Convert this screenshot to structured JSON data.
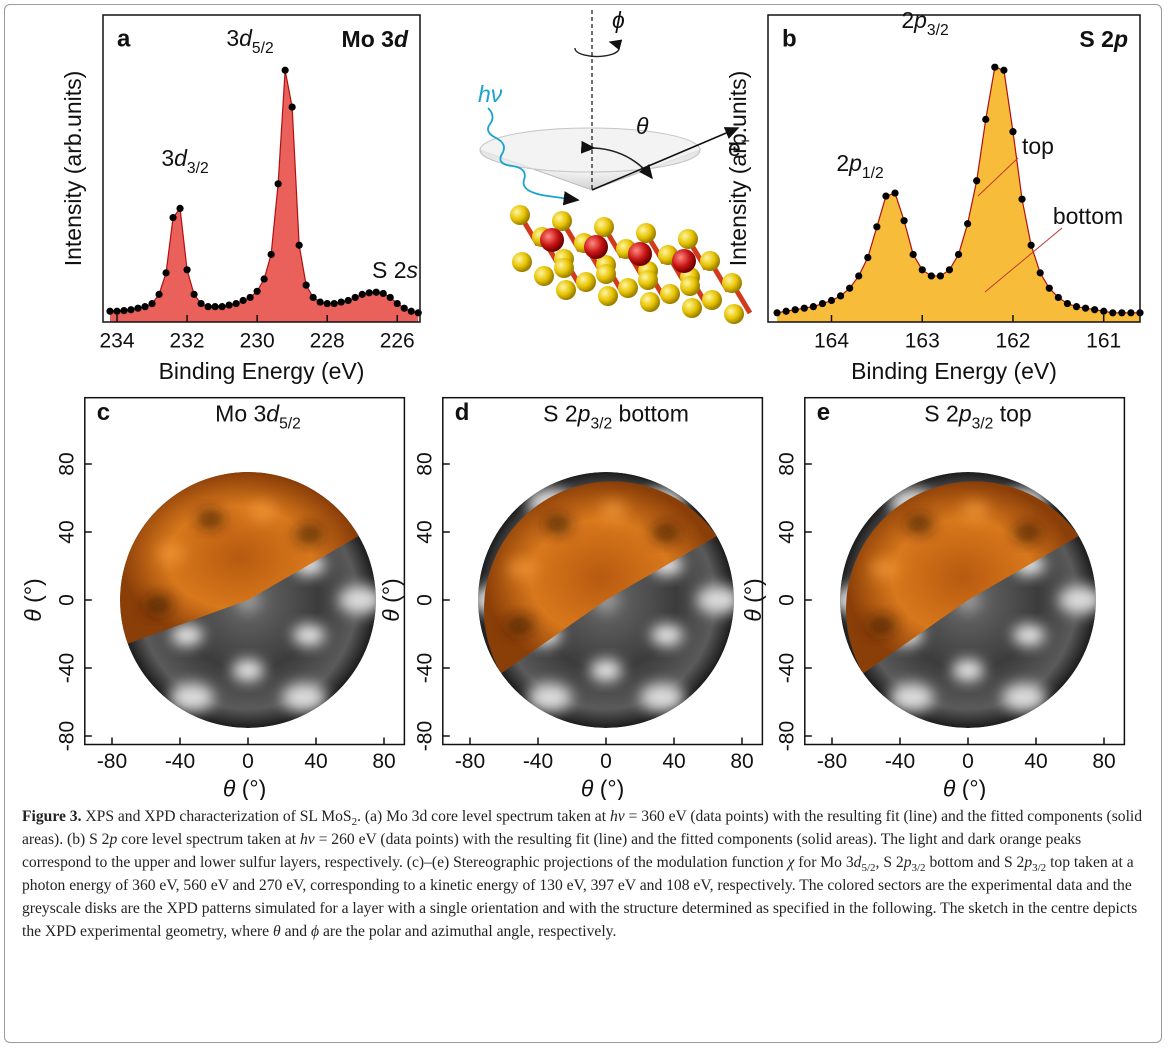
{
  "chart_data": [
    {
      "type": "line",
      "letter": "a",
      "title": [
        "Mo 3",
        "d"
      ],
      "xlabel": "Binding Energy (eV)",
      "ylabel": "Intensity (arb.units)",
      "x": [
        234.2,
        234.0,
        233.8,
        233.6,
        233.4,
        233.2,
        233.0,
        232.8,
        232.6,
        232.4,
        232.2,
        232.0,
        231.8,
        231.6,
        231.4,
        231.2,
        231.0,
        230.8,
        230.6,
        230.4,
        230.2,
        230.0,
        229.8,
        229.6,
        229.4,
        229.2,
        229.0,
        228.8,
        228.6,
        228.4,
        228.2,
        228.0,
        227.8,
        227.6,
        227.4,
        227.2,
        227.0,
        226.8,
        226.6,
        226.4,
        226.2,
        226.0,
        225.8,
        225.6,
        225.4
      ],
      "values": [
        0.035,
        0.035,
        0.037,
        0.04,
        0.045,
        0.05,
        0.06,
        0.09,
        0.16,
        0.34,
        0.37,
        0.17,
        0.09,
        0.06,
        0.05,
        0.05,
        0.05,
        0.055,
        0.06,
        0.07,
        0.08,
        0.1,
        0.14,
        0.22,
        0.45,
        0.82,
        0.7,
        0.25,
        0.12,
        0.08,
        0.065,
        0.06,
        0.06,
        0.065,
        0.07,
        0.08,
        0.09,
        0.095,
        0.097,
        0.093,
        0.08,
        0.06,
        0.045,
        0.035,
        0.03
      ],
      "xlim": [
        234.4,
        225.35
      ],
      "ylim": [
        0,
        1
      ],
      "xticks": [
        234,
        232,
        230,
        228,
        226
      ],
      "color": "#000000",
      "fill": "#e8504a",
      "annotations": [
        [
          "3",
          "d",
          "3/2"
        ],
        [
          "3",
          "d",
          "5/2"
        ],
        [
          "S 2",
          "s"
        ]
      ]
    },
    {
      "type": "line",
      "letter": "b",
      "title": [
        "S 2",
        "p"
      ],
      "xlabel": "Binding Energy (eV)",
      "ylabel": "Intensity (arb.units)",
      "x": [
        164.6,
        164.5,
        164.4,
        164.3,
        164.2,
        164.1,
        164.0,
        163.9,
        163.8,
        163.7,
        163.6,
        163.5,
        163.4,
        163.3,
        163.2,
        163.1,
        163.0,
        162.9,
        162.8,
        162.7,
        162.6,
        162.5,
        162.4,
        162.3,
        162.2,
        162.1,
        162.0,
        161.9,
        161.8,
        161.7,
        161.6,
        161.5,
        161.4,
        161.3,
        161.2,
        161.1,
        161.0,
        160.9,
        160.8,
        160.7,
        160.6
      ],
      "values": [
        0.03,
        0.035,
        0.04,
        0.045,
        0.05,
        0.06,
        0.07,
        0.085,
        0.11,
        0.15,
        0.21,
        0.31,
        0.41,
        0.42,
        0.33,
        0.22,
        0.17,
        0.15,
        0.15,
        0.17,
        0.22,
        0.32,
        0.46,
        0.66,
        0.83,
        0.82,
        0.62,
        0.4,
        0.25,
        0.16,
        0.11,
        0.08,
        0.06,
        0.05,
        0.045,
        0.04,
        0.035,
        0.03,
        0.03,
        0.03,
        0.03
      ],
      "xlim": [
        164.7,
        160.6
      ],
      "ylim": [
        0,
        1
      ],
      "xticks": [
        164,
        163,
        162,
        161
      ],
      "color": "#000000",
      "fill": "#f7b526",
      "annotations": [
        [
          "2",
          "p",
          "3/2"
        ],
        [
          "2",
          "p",
          "1/2"
        ],
        [
          "top"
        ],
        [
          "bottom"
        ]
      ]
    }
  ],
  "sketch": {
    "photon": "hν",
    "azimuth": "ϕ",
    "polar": "θ",
    "electron": [
      "e",
      "−"
    ]
  },
  "maps": [
    {
      "letter": "c",
      "title": [
        "Mo 3",
        "d",
        "5/2"
      ],
      "xlim": [
        -96,
        92
      ],
      "ylim": [
        -85,
        119
      ],
      "xticks": [
        -80,
        -40,
        0,
        40,
        80
      ],
      "yticks": [
        -80,
        -40,
        0,
        40,
        80
      ],
      "xlabel": [
        "θ",
        " (°)"
      ],
      "ylabel": [
        "θ",
        " (°)"
      ]
    },
    {
      "letter": "d",
      "title": [
        "S 2",
        "p",
        "3/2",
        " bottom"
      ],
      "xlim": [
        -96,
        92
      ],
      "ylim": [
        -85,
        119
      ],
      "xticks": [
        -80,
        -40,
        0,
        40,
        80
      ],
      "yticks": [
        -80,
        -40,
        0,
        40,
        80
      ],
      "xlabel": [
        "θ",
        " (°)"
      ],
      "ylabel": [
        "θ",
        " (°)"
      ]
    },
    {
      "letter": "e",
      "title": [
        "S 2",
        "p",
        "3/2",
        " top"
      ],
      "xlim": [
        -96,
        92
      ],
      "ylim": [
        -85,
        119
      ],
      "xticks": [
        -80,
        -40,
        0,
        40,
        80
      ],
      "yticks": [
        -80,
        -40,
        0,
        40,
        80
      ],
      "xlabel": [
        "θ",
        " (°)"
      ],
      "ylabel": [
        "θ",
        " (°)"
      ]
    }
  ],
  "caption": {
    "runs": [
      "Figure 3.",
      "  XPS and XPD characterization of SL MoS",
      "2",
      ". (a) Mo 3d core level spectrum taken at ",
      "hν",
      " = 360 eV (data points) with the resulting fit (line) and the fitted components (solid areas). (b) S 2",
      "p",
      " core level spectrum taken at ",
      "hν",
      " = 260 eV (data points) with the resulting fit (line) and the fitted components (solid areas). The light and dark orange peaks correspond to the upper and lower sulfur layers, respectively. (c)–(e) Stereographic projections of the modulation function ",
      "χ",
      " for Mo 3",
      "d",
      "5/2",
      ", S 2",
      "p",
      "3/2",
      " bottom and S 2",
      "p",
      "3/2",
      " top taken at a photon energy of 360 eV, 560 eV and 270 eV, corresponding to a kinetic energy of 130 eV, 397 eV and 108 eV, respectively. The colored sectors are the experimental data and the greyscale disks are the XPD patterns simulated for a layer with a single orientation and with the structure determined as specified in the following. The sketch in the centre depicts the XPD experimental geometry, where ",
      "θ",
      " and ",
      "ϕ",
      " are the polar and azimuthal angle, respectively."
    ]
  }
}
